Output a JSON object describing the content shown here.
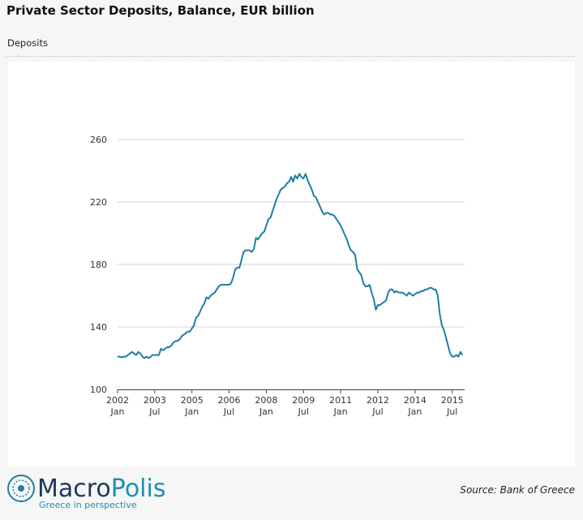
{
  "chart_data": {
    "type": "line",
    "title": "Private Sector Deposits, Balance, EUR billion",
    "subtitle": "Deposits",
    "source": "Source: Bank of Greece",
    "logo": {
      "name_first": "Macro",
      "name_second": "Polis",
      "tagline": "Greece in perspective"
    },
    "x": [
      "2002-01",
      "2002-02",
      "2002-03",
      "2002-04",
      "2002-05",
      "2002-06",
      "2002-07",
      "2002-08",
      "2002-09",
      "2002-10",
      "2002-11",
      "2002-12",
      "2003-01",
      "2003-02",
      "2003-03",
      "2003-04",
      "2003-05",
      "2003-06",
      "2003-07",
      "2003-08",
      "2003-09",
      "2003-10",
      "2003-11",
      "2003-12",
      "2004-01",
      "2004-02",
      "2004-03",
      "2004-04",
      "2004-05",
      "2004-06",
      "2004-07",
      "2004-08",
      "2004-09",
      "2004-10",
      "2004-11",
      "2004-12",
      "2005-01",
      "2005-02",
      "2005-03",
      "2005-04",
      "2005-05",
      "2005-06",
      "2005-07",
      "2005-08",
      "2005-09",
      "2005-10",
      "2005-11",
      "2005-12",
      "2006-01",
      "2006-02",
      "2006-03",
      "2006-04",
      "2006-05",
      "2006-06",
      "2006-07",
      "2006-08",
      "2006-09",
      "2006-10",
      "2006-11",
      "2006-12",
      "2007-01",
      "2007-02",
      "2007-03",
      "2007-04",
      "2007-05",
      "2007-06",
      "2007-07",
      "2007-08",
      "2007-09",
      "2007-10",
      "2007-11",
      "2007-12",
      "2008-01",
      "2008-02",
      "2008-03",
      "2008-04",
      "2008-05",
      "2008-06",
      "2008-07",
      "2008-08",
      "2008-09",
      "2008-10",
      "2008-11",
      "2008-12",
      "2009-01",
      "2009-02",
      "2009-03",
      "2009-04",
      "2009-05",
      "2009-06",
      "2009-07",
      "2009-08",
      "2009-09",
      "2009-10",
      "2009-11",
      "2009-12",
      "2010-01",
      "2010-02",
      "2010-03",
      "2010-04",
      "2010-05",
      "2010-06",
      "2010-07",
      "2010-08",
      "2010-09",
      "2010-10",
      "2010-11",
      "2010-12",
      "2011-01",
      "2011-02",
      "2011-03",
      "2011-04",
      "2011-05",
      "2011-06",
      "2011-07",
      "2011-08",
      "2011-09",
      "2011-10",
      "2011-11",
      "2011-12",
      "2012-01",
      "2012-02",
      "2012-03",
      "2012-04",
      "2012-05",
      "2012-06",
      "2012-07",
      "2012-08",
      "2012-09",
      "2012-10",
      "2012-11",
      "2012-12",
      "2013-01",
      "2013-02",
      "2013-03",
      "2013-04",
      "2013-05",
      "2013-06",
      "2013-07",
      "2013-08",
      "2013-09",
      "2013-10",
      "2013-11",
      "2013-12",
      "2014-01",
      "2014-02",
      "2014-03",
      "2014-04",
      "2014-05",
      "2014-06",
      "2014-07",
      "2014-08",
      "2014-09",
      "2014-10",
      "2014-11",
      "2014-12",
      "2015-01",
      "2015-02",
      "2015-03",
      "2015-04",
      "2015-05",
      "2015-06",
      "2015-07",
      "2015-08",
      "2015-09",
      "2015-10",
      "2015-11",
      "2015-12"
    ],
    "series": [
      {
        "name": "Deposits",
        "color": "#1f7ea1",
        "values": [
          121,
          121,
          120.5,
          121,
          121,
          122,
          123,
          124,
          123,
          122,
          124,
          123,
          121,
          120,
          121,
          120,
          121,
          122,
          122,
          122,
          122,
          126,
          125,
          126,
          127,
          127,
          128,
          130,
          131,
          131,
          132,
          134,
          135,
          136,
          137,
          137,
          139,
          141,
          146,
          147,
          150,
          153,
          155,
          159,
          158,
          160,
          161,
          162,
          164,
          166,
          167,
          167,
          167,
          167,
          167,
          168,
          172,
          177,
          178,
          178,
          183,
          188,
          189,
          189,
          189,
          188,
          190,
          197,
          196,
          198,
          200,
          201,
          205,
          209,
          210,
          214,
          218,
          222,
          225,
          228,
          229,
          230,
          232,
          233,
          236,
          233,
          237,
          235,
          238,
          236,
          235,
          238,
          234,
          231,
          228,
          224,
          223,
          220,
          217,
          214,
          212,
          213,
          213,
          212,
          212,
          211,
          209,
          207,
          205,
          202,
          199,
          196,
          192,
          189,
          188,
          186,
          177,
          175,
          173,
          168,
          166,
          166,
          167,
          162,
          158,
          151,
          154,
          154,
          155,
          156,
          157,
          162,
          164,
          164,
          162,
          163,
          162,
          162,
          162,
          161,
          160,
          162,
          161,
          160,
          161,
          162,
          162,
          163,
          163,
          164,
          164,
          165,
          165,
          164,
          164,
          160,
          148,
          141,
          138,
          133,
          128,
          123,
          121,
          121,
          122,
          121,
          124,
          122
        ]
      }
    ],
    "xlim": [
      "2002-01",
      "2016-01"
    ],
    "xticks": [
      {
        "value": "2002-01",
        "label": "2002 Jan"
      },
      {
        "value": "2003-07",
        "label": "2003 Jul"
      },
      {
        "value": "2005-01",
        "label": "2005 Jan"
      },
      {
        "value": "2006-07",
        "label": "2006 Jul"
      },
      {
        "value": "2008-01",
        "label": "2008 Jan"
      },
      {
        "value": "2009-07",
        "label": "2009 Jul"
      },
      {
        "value": "2011-01",
        "label": "2011 Jan"
      },
      {
        "value": "2012-07",
        "label": "2012 Jul"
      },
      {
        "value": "2014-01",
        "label": "2014 Jan"
      },
      {
        "value": "2015-07",
        "label": "2015 Jul"
      }
    ],
    "ylim": [
      100,
      260
    ],
    "yticks": [
      100,
      140,
      180,
      220,
      260
    ],
    "grid": true
  }
}
